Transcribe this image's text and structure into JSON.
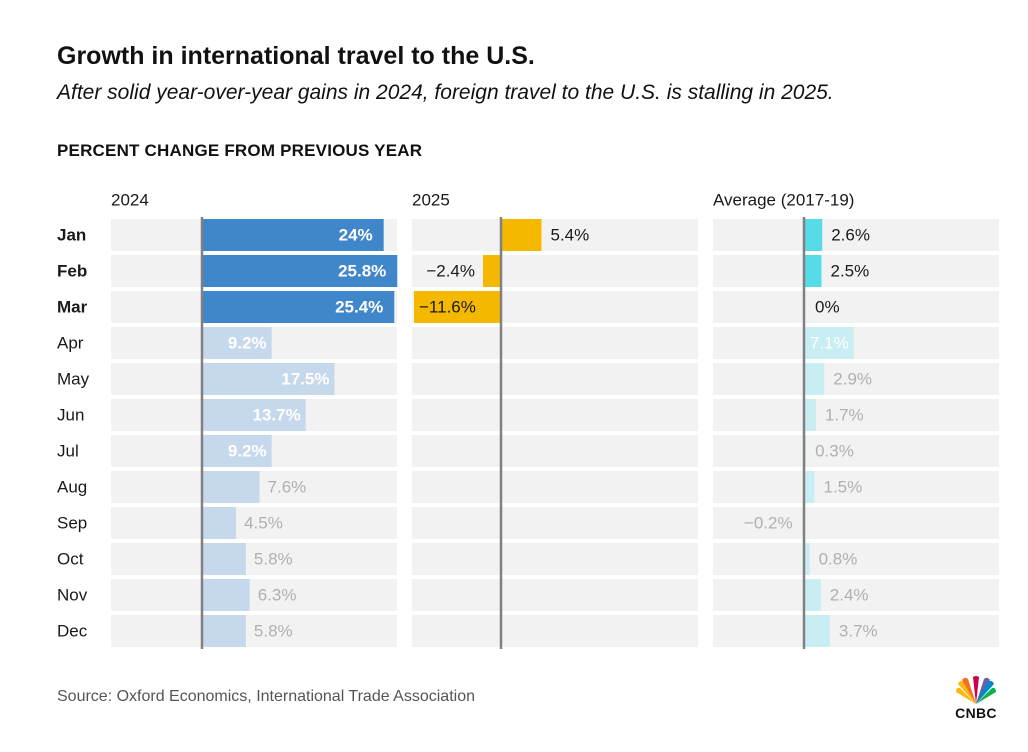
{
  "title": "Growth in international travel to the U.S.",
  "subtitle": "After solid year-over-year gains in 2024, foreign travel to the U.S. is stalling in 2025.",
  "section_label": "PERCENT CHANGE FROM PREVIOUS YEAR",
  "source": "Source: Oxford Economics, International Trade Association",
  "logo": {
    "text": "CNBC",
    "icon": "cnbc-peacock-icon"
  },
  "colors": {
    "strong_2024": "#3f87ca",
    "faded_2024": "#c5d8ec",
    "bar_2025": "#f5b800",
    "strong_avg": "#57dbe9",
    "faded_avg": "#c8eef3",
    "row_bg": "#f2f2f2",
    "axis": "#808080",
    "faded_text": "#b0b0b0"
  },
  "chart_data": {
    "type": "bar",
    "title": "Percent change from previous year",
    "categories": [
      "Jan",
      "Feb",
      "Mar",
      "Apr",
      "May",
      "Jun",
      "Jul",
      "Aug",
      "Sep",
      "Oct",
      "Nov",
      "Dec"
    ],
    "highlighted_categories": [
      "Jan",
      "Feb",
      "Mar"
    ],
    "series": [
      {
        "name": "2024",
        "values": [
          24,
          25.8,
          25.4,
          9.2,
          17.5,
          13.7,
          9.2,
          7.6,
          4.5,
          5.8,
          6.3,
          5.8
        ],
        "labels": [
          "24%",
          "25.8%",
          "25.4%",
          "9.2%",
          "17.5%",
          "13.7%",
          "9.2%",
          "7.6%",
          "4.5%",
          "5.8%",
          "6.3%",
          "5.8%"
        ]
      },
      {
        "name": "2025",
        "values": [
          5.4,
          -2.4,
          -11.6,
          null,
          null,
          null,
          null,
          null,
          null,
          null,
          null,
          null
        ],
        "labels": [
          "5.4%",
          "−2.4%",
          "−11.6%",
          "",
          "",
          "",
          "",
          "",
          "",
          "",
          "",
          ""
        ]
      },
      {
        "name": "Average (2017-19)",
        "values": [
          2.6,
          2.5,
          0,
          7.1,
          2.9,
          1.7,
          0.3,
          1.5,
          -0.2,
          0.8,
          2.4,
          3.7
        ],
        "labels": [
          "2.6%",
          "2.5%",
          "0%",
          "7.1%",
          "2.9%",
          "1.7%",
          "0.3%",
          "1.5%",
          "−0.2%",
          "0.8%",
          "2.4%",
          "3.7%"
        ]
      }
    ],
    "xlabel": "",
    "ylabel": ""
  }
}
